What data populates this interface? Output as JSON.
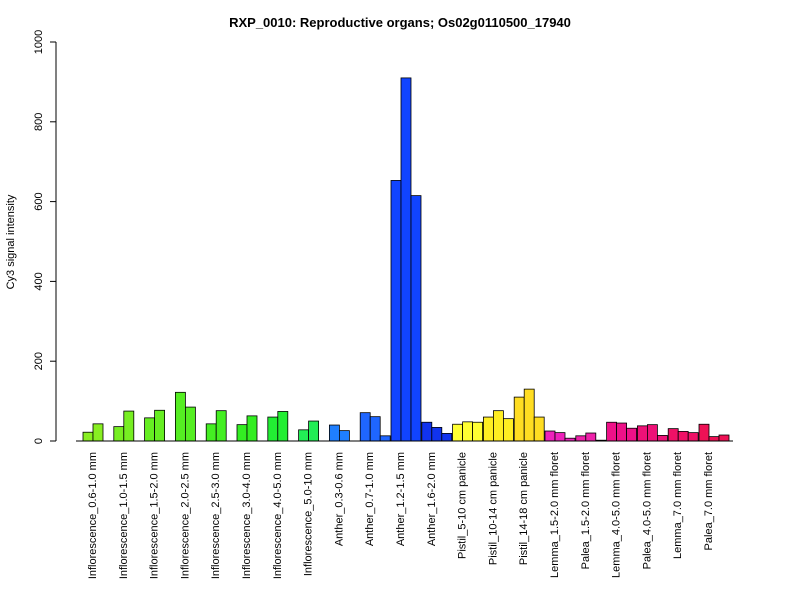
{
  "chart_data": {
    "type": "bar",
    "title": "RXP_0010: Reproductive organs; Os02g0110500_17940",
    "xlabel": "",
    "ylabel": "Cy3 signal intensity",
    "ylim": [
      0,
      1000
    ],
    "yticks": [
      0,
      200,
      400,
      600,
      800,
      1000
    ],
    "grid": false,
    "legend": "none",
    "groups": [
      {
        "label": "Inflorescence_0.6-1.0 mm",
        "color": "#88ee22",
        "values": [
          22,
          43
        ]
      },
      {
        "label": "Inflorescence_1.0-1.5 mm",
        "color": "#77ee22",
        "values": [
          36,
          75
        ]
      },
      {
        "label": "Inflorescence_1.5-2.0 mm",
        "color": "#66ee22",
        "values": [
          58,
          77
        ]
      },
      {
        "label": "Inflorescence_2.0-2.5 mm",
        "color": "#55ee22",
        "values": [
          122,
          85
        ]
      },
      {
        "label": "Inflorescence_2.5-3.0 mm",
        "color": "#44ee22",
        "values": [
          43,
          76
        ]
      },
      {
        "label": "Inflorescence_3.0-4.0 mm",
        "color": "#33ee22",
        "values": [
          41,
          63
        ]
      },
      {
        "label": "Inflorescence_4.0-5.0 mm",
        "color": "#22ee33",
        "values": [
          60,
          74
        ]
      },
      {
        "label": "Inflorescence_5.0-10 mm",
        "color": "#22ee55",
        "values": [
          28,
          50
        ]
      },
      {
        "label": "Anther_0.3-0.6 mm",
        "color": "#1f7fff",
        "values": [
          40,
          26
        ]
      },
      {
        "label": "Anther_0.7-1.0 mm",
        "color": "#1f66ff",
        "values": [
          71,
          61,
          13
        ]
      },
      {
        "label": "Anther_1.2-1.5 mm",
        "color": "#1144ff",
        "values": [
          653,
          910,
          615
        ]
      },
      {
        "label": "Anther_1.6-2.0 mm",
        "color": "#1133ee",
        "values": [
          47,
          34,
          19
        ]
      },
      {
        "label": "Pistil_5-10 cm panicle",
        "color": "#ffff33",
        "values": [
          42,
          48,
          47
        ]
      },
      {
        "label": "Pistil_10-14 cm panicle",
        "color": "#ffee22",
        "values": [
          60,
          76,
          56
        ]
      },
      {
        "label": "Pistil_14-18 cm panicle",
        "color": "#ffdd22",
        "values": [
          110,
          130,
          60
        ]
      },
      {
        "label": "Lemma_1.5-2.0 mm floret",
        "color": "#ee22bb",
        "values": [
          25,
          21,
          7
        ]
      },
      {
        "label": "Palea_1.5-2.0 mm floret",
        "color": "#ee22aa",
        "values": [
          13,
          20,
          2
        ]
      },
      {
        "label": "Lemma_4.0-5.0 mm floret",
        "color": "#ee1188",
        "values": [
          47,
          45,
          32
        ]
      },
      {
        "label": "Palea_4.0-5.0 mm floret",
        "color": "#ee1177",
        "values": [
          38,
          41,
          14
        ]
      },
      {
        "label": "Lemma_7.0 mm floret",
        "color": "#ee1166",
        "values": [
          31,
          24,
          21
        ]
      },
      {
        "label": "Palea_7.0 mm floret",
        "color": "#ee1155",
        "values": [
          42,
          11,
          15
        ]
      }
    ]
  }
}
